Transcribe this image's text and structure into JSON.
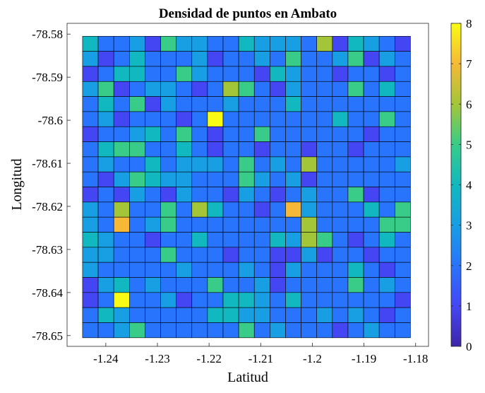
{
  "chart_data": {
    "type": "heatmap",
    "title": "Densidad de puntos en Ambato",
    "xlabel": "Latitud",
    "ylabel": "Longitud",
    "x_ticks": [
      "-1.24",
      "-1.23",
      "-1.22",
      "-1.21",
      "-1.2",
      "-1.19",
      "-1.18"
    ],
    "x_tick_values": [
      -1.24,
      -1.23,
      -1.22,
      -1.21,
      -1.2,
      -1.19,
      -1.18
    ],
    "y_ticks": [
      "-78.58",
      "-78.59",
      "-78.6",
      "-78.61",
      "-78.62",
      "-78.63",
      "-78.64",
      "-78.65"
    ],
    "y_tick_values": [
      -78.58,
      -78.59,
      -78.6,
      -78.61,
      -78.62,
      -78.63,
      -78.64,
      -78.65
    ],
    "xlim": [
      -1.2475,
      -1.1775
    ],
    "ylim": [
      -78.6525,
      -78.5775
    ],
    "cell_x_start": -1.2445,
    "cell_x_end": -1.181,
    "cell_y_top": -78.5805,
    "cell_y_bottom": -78.6505,
    "colorbar": {
      "min": 0,
      "max": 8,
      "ticks": [
        "0",
        "1",
        "2",
        "3",
        "4",
        "5",
        "6",
        "7",
        "8"
      ],
      "colormap": "parula"
    },
    "values": [
      [
        4,
        2,
        2,
        3,
        1,
        5,
        3,
        3,
        2,
        2,
        4,
        3,
        3,
        3,
        2,
        6,
        1,
        4,
        3,
        2,
        1
      ],
      [
        3,
        1,
        2,
        4,
        2,
        2,
        2,
        3,
        1,
        2,
        2,
        3,
        2,
        5,
        2,
        2,
        3,
        5,
        1,
        3,
        2
      ],
      [
        1,
        2,
        4,
        4,
        2,
        2,
        5,
        3,
        2,
        2,
        2,
        1,
        4,
        3,
        2,
        2,
        1,
        2,
        2,
        1,
        2
      ],
      [
        3,
        5,
        1,
        2,
        3,
        3,
        2,
        1,
        2,
        6,
        5,
        2,
        1,
        3,
        2,
        2,
        2,
        5,
        2,
        4,
        2
      ],
      [
        2,
        4,
        2,
        5,
        1,
        3,
        2,
        2,
        2,
        3,
        2,
        2,
        2,
        4,
        2,
        2,
        2,
        2,
        2,
        2,
        2
      ],
      [
        2,
        3,
        1,
        2,
        2,
        2,
        1,
        2,
        8,
        2,
        2,
        2,
        2,
        2,
        2,
        2,
        4,
        2,
        2,
        5,
        2
      ],
      [
        1,
        2,
        2,
        3,
        4,
        2,
        5,
        2,
        1,
        2,
        2,
        5,
        2,
        2,
        2,
        2,
        2,
        2,
        1,
        2,
        2
      ],
      [
        2,
        4,
        5,
        5,
        2,
        2,
        4,
        2,
        1,
        2,
        2,
        1,
        2,
        2,
        1,
        2,
        2,
        1,
        2,
        2,
        2
      ],
      [
        2,
        3,
        2,
        2,
        4,
        2,
        3,
        3,
        3,
        2,
        5,
        2,
        3,
        2,
        6,
        2,
        2,
        2,
        2,
        2,
        3
      ],
      [
        2,
        1,
        3,
        5,
        4,
        3,
        3,
        2,
        2,
        2,
        5,
        3,
        2,
        3,
        1,
        2,
        2,
        2,
        2,
        2,
        2
      ],
      [
        1,
        2,
        1,
        3,
        2,
        1,
        3,
        2,
        2,
        1,
        3,
        2,
        1,
        2,
        3,
        2,
        2,
        5,
        1,
        2,
        2
      ],
      [
        3,
        2,
        6,
        2,
        2,
        5,
        2,
        6,
        4,
        2,
        2,
        1,
        2,
        7,
        3,
        2,
        2,
        2,
        4,
        2,
        5
      ],
      [
        3,
        2,
        7,
        2,
        3,
        5,
        2,
        2,
        2,
        2,
        2,
        2,
        2,
        2,
        6,
        2,
        2,
        2,
        2,
        5,
        5
      ],
      [
        4,
        3,
        2,
        2,
        1,
        2,
        2,
        4,
        2,
        2,
        2,
        2,
        4,
        3,
        6,
        5,
        2,
        1,
        2,
        4,
        2
      ],
      [
        3,
        3,
        2,
        2,
        2,
        5,
        2,
        2,
        2,
        1,
        2,
        2,
        1,
        1,
        3,
        1,
        2,
        2,
        1,
        2,
        2
      ],
      [
        3,
        2,
        2,
        2,
        2,
        2,
        3,
        2,
        2,
        2,
        3,
        2,
        1,
        3,
        2,
        2,
        2,
        4,
        2,
        1,
        2
      ],
      [
        1,
        3,
        4,
        2,
        3,
        2,
        2,
        2,
        5,
        2,
        2,
        3,
        1,
        2,
        2,
        2,
        2,
        5,
        2,
        3,
        2
      ],
      [
        1,
        2,
        8,
        2,
        2,
        3,
        1,
        2,
        2,
        4,
        4,
        3,
        2,
        4,
        2,
        2,
        2,
        2,
        2,
        2,
        1
      ],
      [
        2,
        4,
        3,
        2,
        2,
        2,
        2,
        2,
        4,
        4,
        3,
        3,
        2,
        2,
        2,
        3,
        2,
        3,
        2,
        1,
        2
      ],
      [
        2,
        2,
        3,
        5,
        2,
        2,
        2,
        2,
        2,
        2,
        5,
        2,
        3,
        2,
        2,
        2,
        1,
        2,
        3,
        2,
        2
      ]
    ]
  }
}
